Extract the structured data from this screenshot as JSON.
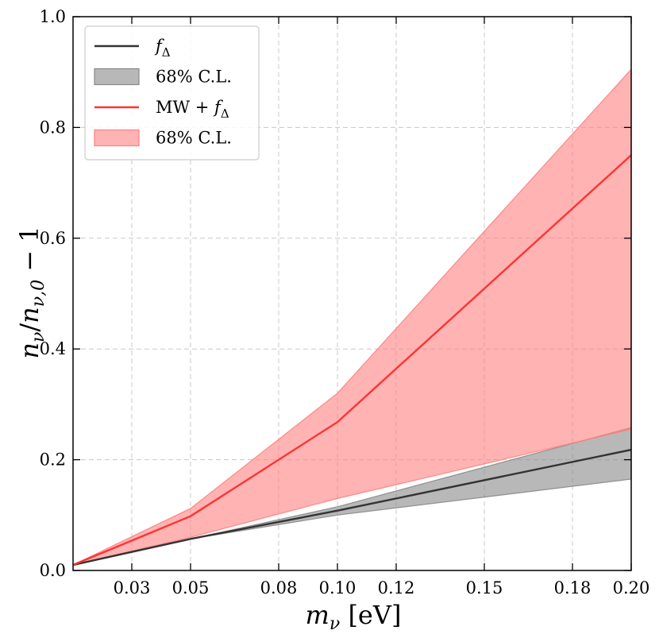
{
  "chart_data": {
    "type": "area",
    "title": "",
    "xlabel": "m_ν [eV]",
    "ylabel": "n_ν/n_ν,0 − 1",
    "xlim": [
      0.01,
      0.2
    ],
    "ylim": [
      0.0,
      1.0
    ],
    "grid": true,
    "legend_position": "top-left",
    "x_ticks": [
      0.03,
      0.05,
      0.08,
      0.1,
      0.12,
      0.15,
      0.18,
      0.2
    ],
    "x_tick_labels": [
      "0.03",
      "0.05",
      "0.08",
      "0.10",
      "0.12",
      "0.15",
      "0.18",
      "0.20"
    ],
    "y_ticks": [
      0.0,
      0.2,
      0.4,
      0.6,
      0.8,
      1.0
    ],
    "y_tick_labels": [
      "0.0",
      "0.2",
      "0.4",
      "0.6",
      "0.8",
      "1.0"
    ],
    "x": [
      0.01,
      0.05,
      0.1,
      0.2
    ],
    "series": [
      {
        "name": "f_Δ",
        "kind": "line",
        "color": "#333333",
        "values": [
          0.01,
          0.057,
          0.108,
          0.218
        ]
      },
      {
        "name": "68% C.L.",
        "kind": "band",
        "color": "#888888",
        "lower": [
          0.01,
          0.057,
          0.1,
          0.165
        ],
        "upper": [
          0.01,
          0.057,
          0.115,
          0.258
        ]
      },
      {
        "name": "MW + f_Δ",
        "kind": "line",
        "color": "#ff3333",
        "values": [
          0.01,
          0.098,
          0.268,
          0.75
        ]
      },
      {
        "name": "68% C.L.",
        "kind": "band",
        "color": "#ff8080",
        "lower": [
          0.01,
          0.06,
          0.13,
          0.255
        ],
        "upper": [
          0.01,
          0.112,
          0.32,
          0.905
        ]
      }
    ],
    "legend": [
      {
        "label": "f_Δ",
        "symbol": "line",
        "color": "#333333"
      },
      {
        "label": "68% C.L.",
        "symbol": "patch",
        "color": "#888888"
      },
      {
        "label": "MW + f_Δ",
        "symbol": "line",
        "color": "#ff3333"
      },
      {
        "label": "68% C.L.",
        "symbol": "patch",
        "color": "#ff8080"
      }
    ]
  }
}
